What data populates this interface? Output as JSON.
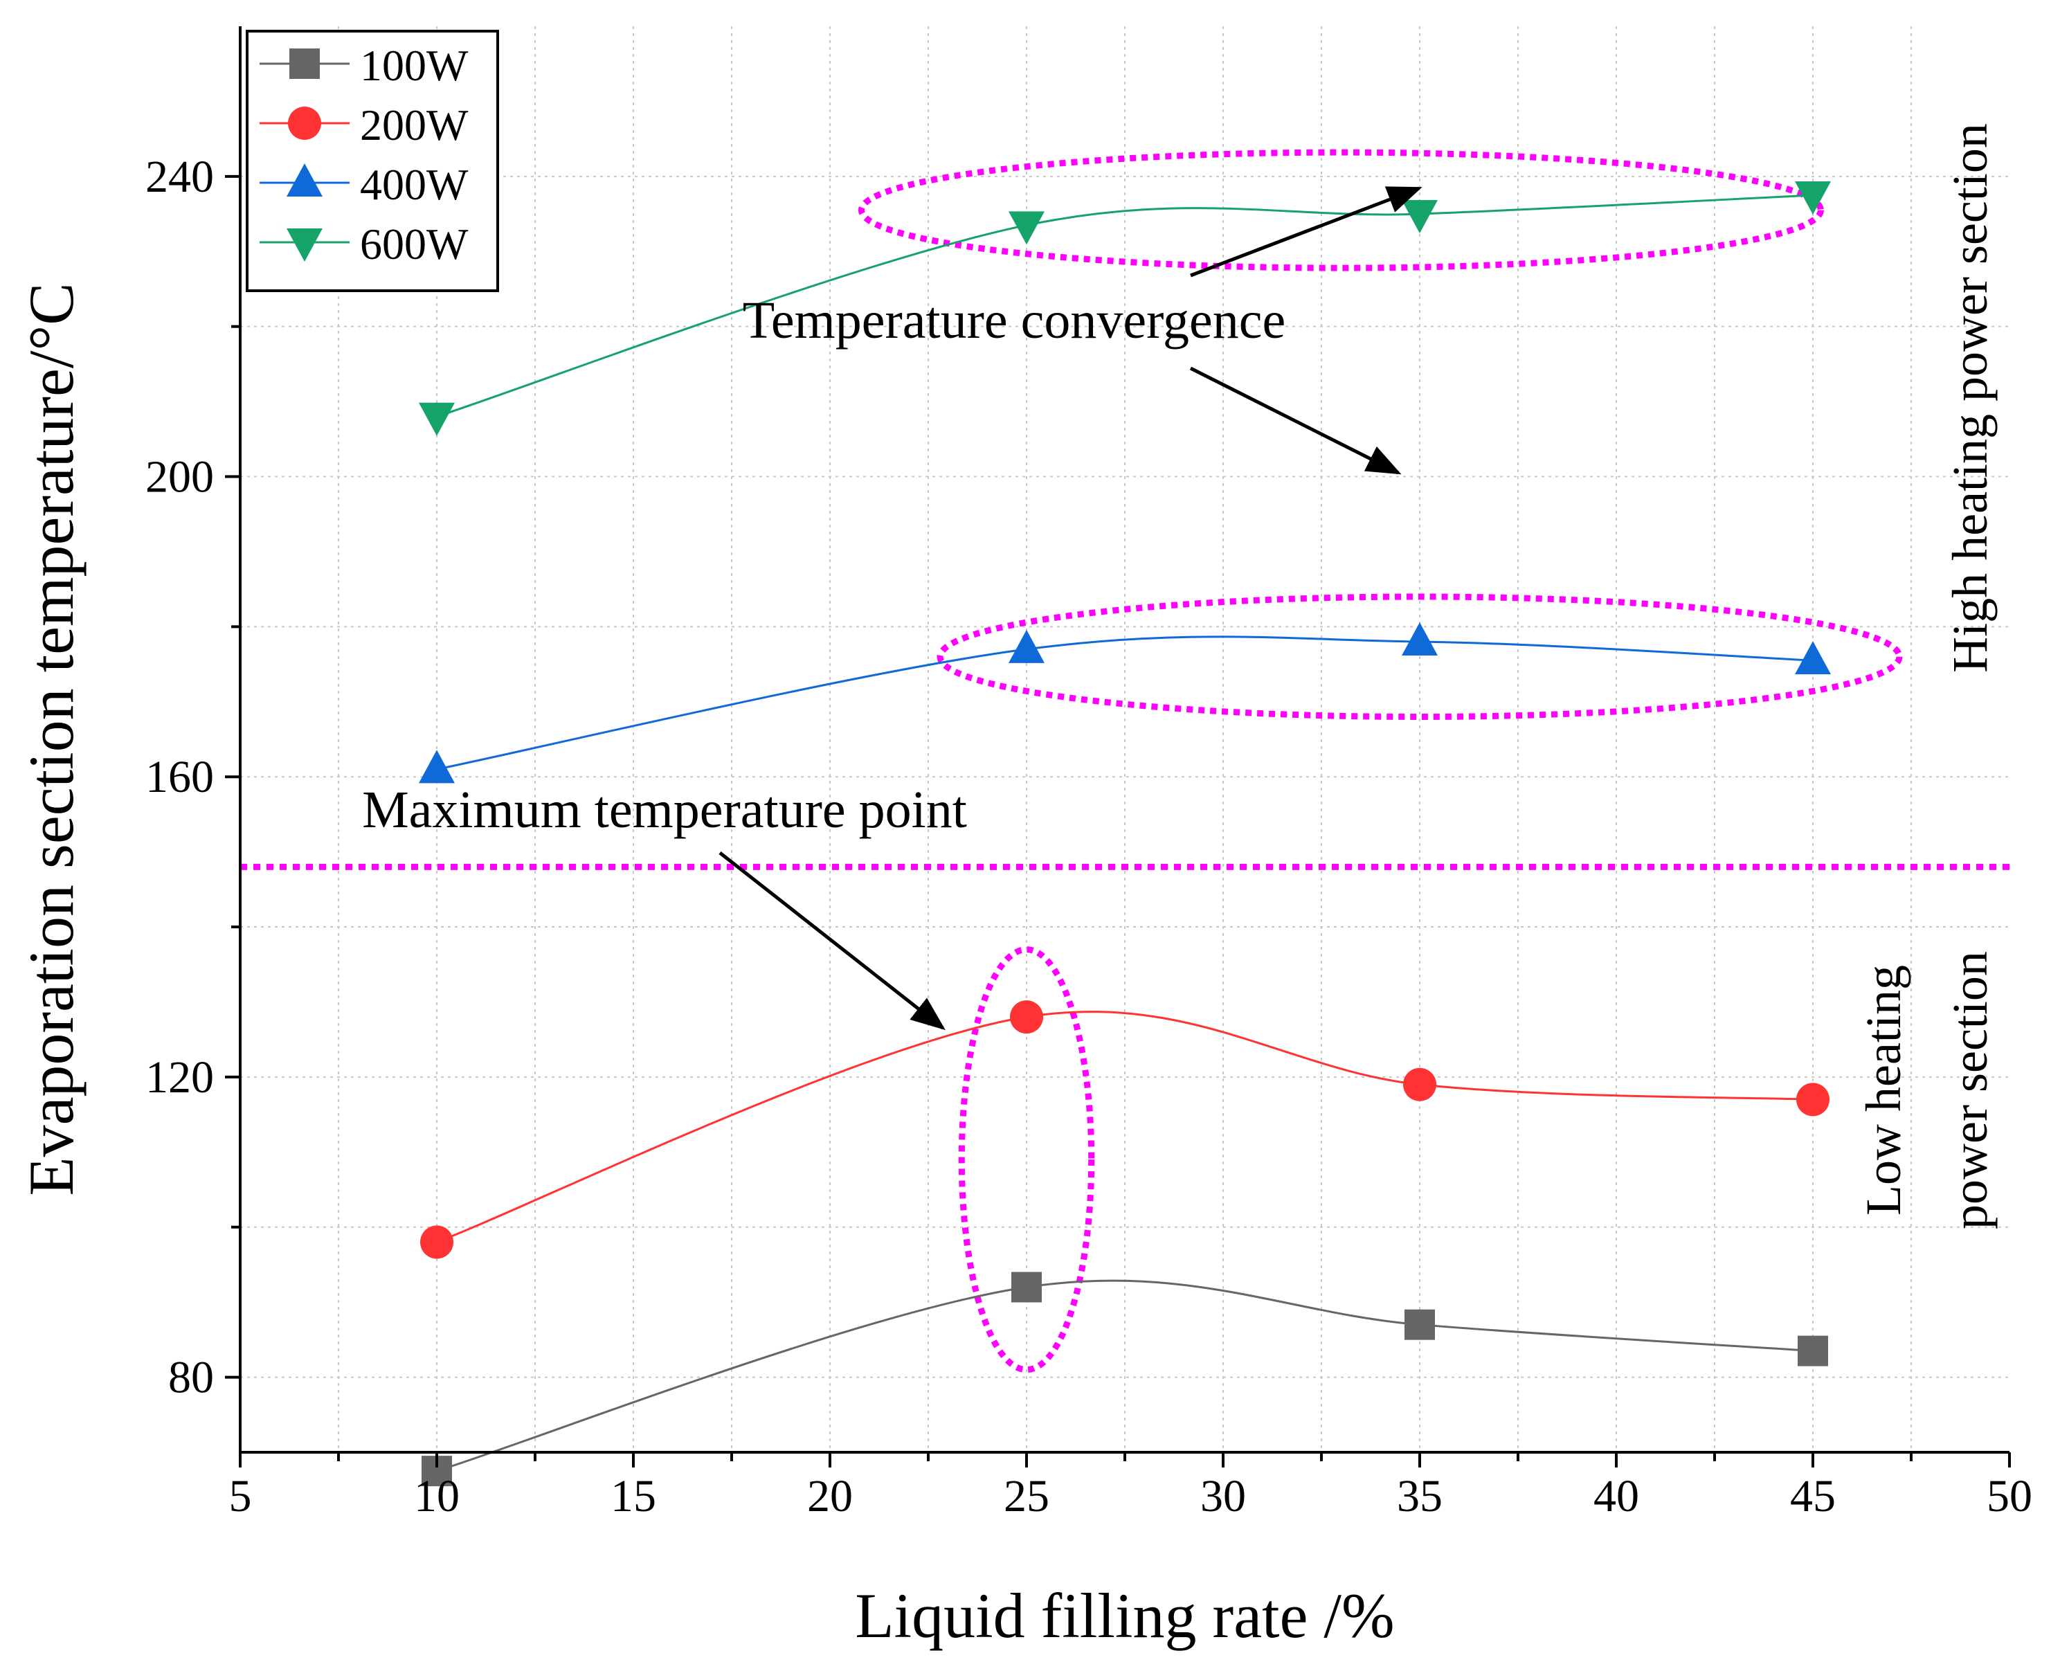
{
  "chart_data": {
    "type": "line",
    "xlabel": "Liquid filling rate /%",
    "ylabel": "Evaporation section temperature/°C",
    "xlim": [
      5,
      50
    ],
    "ylim": [
      70,
      260
    ],
    "xticks": [
      5,
      10,
      15,
      20,
      25,
      30,
      35,
      40,
      45,
      50
    ],
    "xtick_labels": [
      "5",
      "10",
      "15",
      "20",
      "25",
      "30",
      "35",
      "40",
      "45",
      "50"
    ],
    "yticks": [
      80,
      120,
      160,
      200,
      240
    ],
    "ytick_labels": [
      "80",
      "120",
      "160",
      "200",
      "240"
    ],
    "grid": true,
    "legend_position": "top-left",
    "x": [
      10,
      25,
      35,
      45
    ],
    "series": [
      {
        "name": "100W",
        "values": [
          67.5,
          92,
          87,
          83.5
        ],
        "color": "#666666",
        "marker": "square"
      },
      {
        "name": "200W",
        "values": [
          98,
          128,
          119,
          117
        ],
        "color": "#ff3333",
        "marker": "circle"
      },
      {
        "name": "400W",
        "values": [
          161,
          177,
          178,
          175.5
        ],
        "color": "#0f6ad8",
        "marker": "triangle-up"
      },
      {
        "name": "600W",
        "values": [
          208,
          233.5,
          235,
          237.5
        ],
        "color": "#16a36a",
        "marker": "triangle-down"
      }
    ],
    "annotations": {
      "temperature_convergence": "Temperature convergence",
      "maximum_temperature_point": "Maximum temperature point",
      "high_section": "High heating power section",
      "low_section_line1": "Low heating",
      "low_section_line2": "power section"
    },
    "highlight_color": "#ff00ff",
    "divider_y": 148
  }
}
